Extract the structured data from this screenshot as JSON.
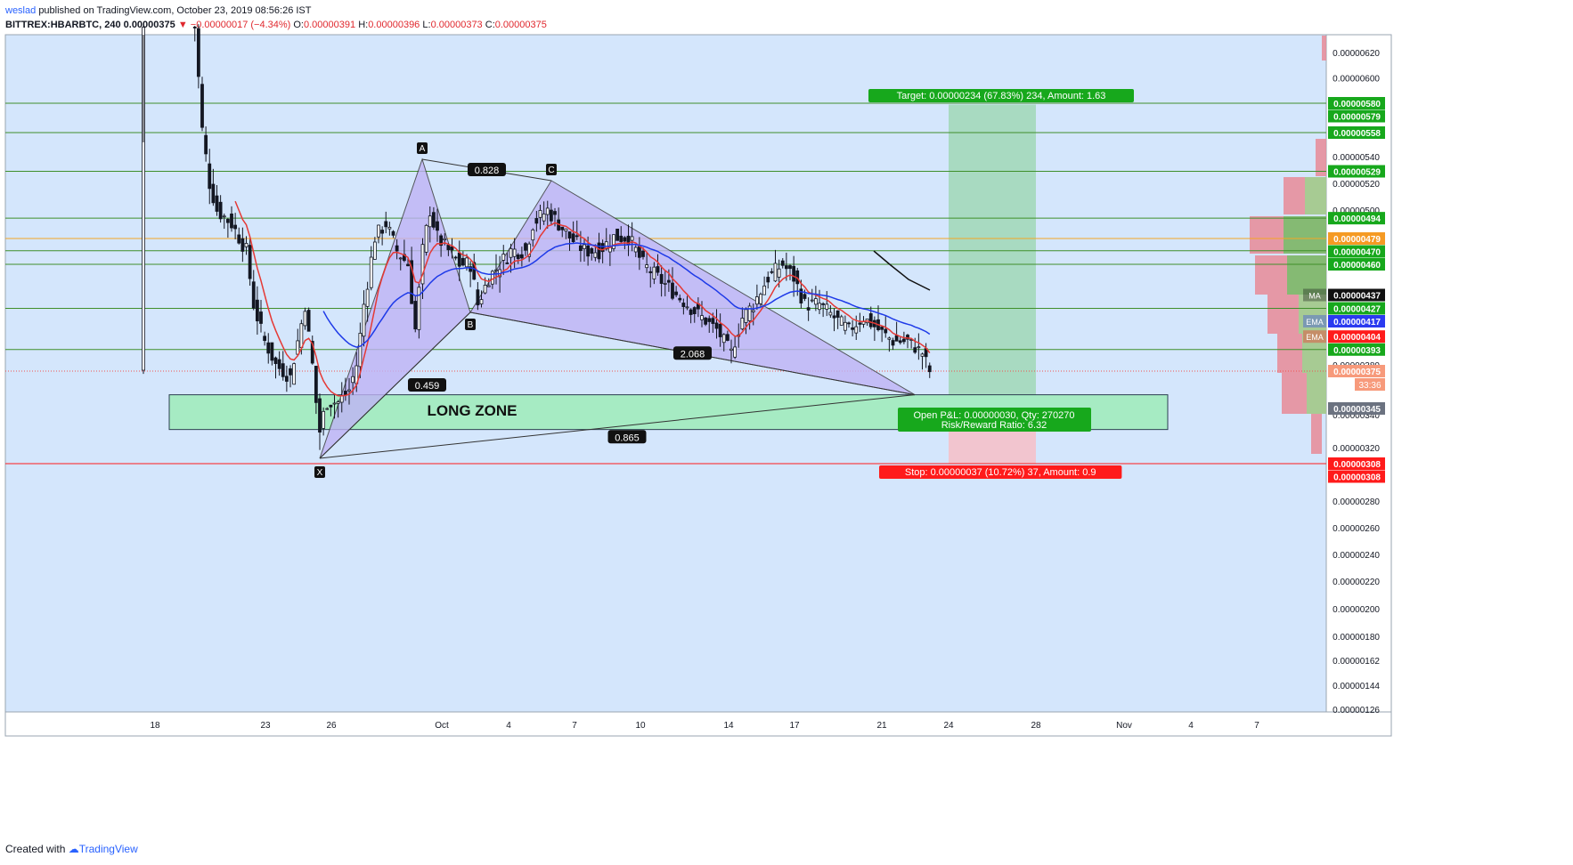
{
  "header": {
    "author": "weslad",
    "published": "published on TradingView.com, October 23, 2019 08:56:26 IST"
  },
  "ohlc": {
    "symbol": "BITTREX:HBARBTC, 240",
    "last": "0.00000375",
    "change": "▼ −0.00000017 (−4.34%)",
    "o_label": "O:",
    "o": "0.00000391",
    "h_label": "H:",
    "h": "0.00000396",
    "l_label": "L:",
    "l": "0.00000373",
    "c_label": "C:",
    "c": "0.00000375"
  },
  "footer": {
    "created_with": "Created with",
    "brand": "TradingView"
  },
  "colors": {
    "plot_bg": "#d4e6fc",
    "candle_up": "#ffffff",
    "candle_stroke": "#131722",
    "ema_fast": "#e53935",
    "ema_slow": "#1e3ae8",
    "pattern_fill": "#c0b3f5",
    "long_zone": "#a6ebc3",
    "target_zone": "#a8dac1",
    "stop_zone": "#f2c5cf",
    "green_label": "#17a81c",
    "red_label": "#ff1b1b",
    "h_line_green": "#3f8f2a",
    "h_line_orange": "#f5a623"
  },
  "chart_data": {
    "type": "candlestick",
    "symbol": "BITTREX:HBARBTC",
    "timeframe": "240",
    "x_ticks": [
      "18",
      "23",
      "26",
      "Oct",
      "4",
      "7",
      "10",
      "14",
      "17",
      "21",
      "24",
      "28",
      "Nov",
      "4",
      "7"
    ],
    "y_ticks": [
      "0.00000620",
      "0.00000600",
      "0.00000540",
      "0.00000520",
      "0.00000500",
      "0.00000380",
      "0.00000340",
      "0.00000320",
      "0.00000280",
      "0.00000260",
      "0.00000240",
      "0.00000220",
      "0.00000200",
      "0.00000180",
      "0.00000162",
      "0.00000144",
      "0.00000126"
    ],
    "price_labels": [
      {
        "value": "0.00000580",
        "color": "green"
      },
      {
        "value": "0.00000579",
        "color": "green"
      },
      {
        "value": "0.00000558",
        "color": "green"
      },
      {
        "value": "0.00000529",
        "color": "green"
      },
      {
        "value": "0.00000494",
        "color": "green"
      },
      {
        "value": "0.00000479",
        "color": "orange"
      },
      {
        "value": "0.00000470",
        "color": "green"
      },
      {
        "value": "0.00000460",
        "color": "green"
      },
      {
        "value": "0.00000437",
        "color": "black",
        "tag": "MA"
      },
      {
        "value": "0.00000427",
        "color": "green"
      },
      {
        "value": "0.00000417",
        "color": "blue",
        "tag": "EMA"
      },
      {
        "value": "0.00000404",
        "color": "red",
        "tag": "EMA"
      },
      {
        "value": "0.00000393",
        "color": "green"
      },
      {
        "value": "0.00000375",
        "color": "salmon",
        "countdown": "33:36"
      },
      {
        "value": "0.00000345",
        "color": "gray"
      },
      {
        "value": "0.00000308",
        "color": "red"
      },
      {
        "value": "0.00000308",
        "color": "red"
      }
    ],
    "horizontal_levels": [
      5.8e-06,
      5.58e-06,
      5.29e-06,
      4.94e-06,
      4.79e-06,
      4.7e-06,
      4.6e-06,
      4.27e-06,
      3.93e-06,
      3.08e-06
    ],
    "pattern": {
      "points": {
        "X": 3.12e-06,
        "A": 5.38e-06,
        "B": 4.24e-06,
        "C": 5.22e-06
      },
      "ratios": [
        "0.828",
        "0.459",
        "2.068",
        "0.865"
      ]
    },
    "long_zone": {
      "label": "LONG ZONE",
      "top": 3.56e-06,
      "bottom": 3.31e-06
    },
    "position": {
      "entry": 3.45e-06,
      "target": 5.79e-06,
      "stop": 3.08e-06,
      "target_label": "Target: 0.00000234 (67.83%) 234, Amount: 1.63",
      "stop_label": "Stop: 0.00000037 (10.72%) 37, Amount: 0.9",
      "pnl_label": "Open P&L: 0.00000030, Qty: 270270",
      "rr_label": "Risk/Reward Ratio: 6.32"
    },
    "last_price": 3.75e-06
  }
}
